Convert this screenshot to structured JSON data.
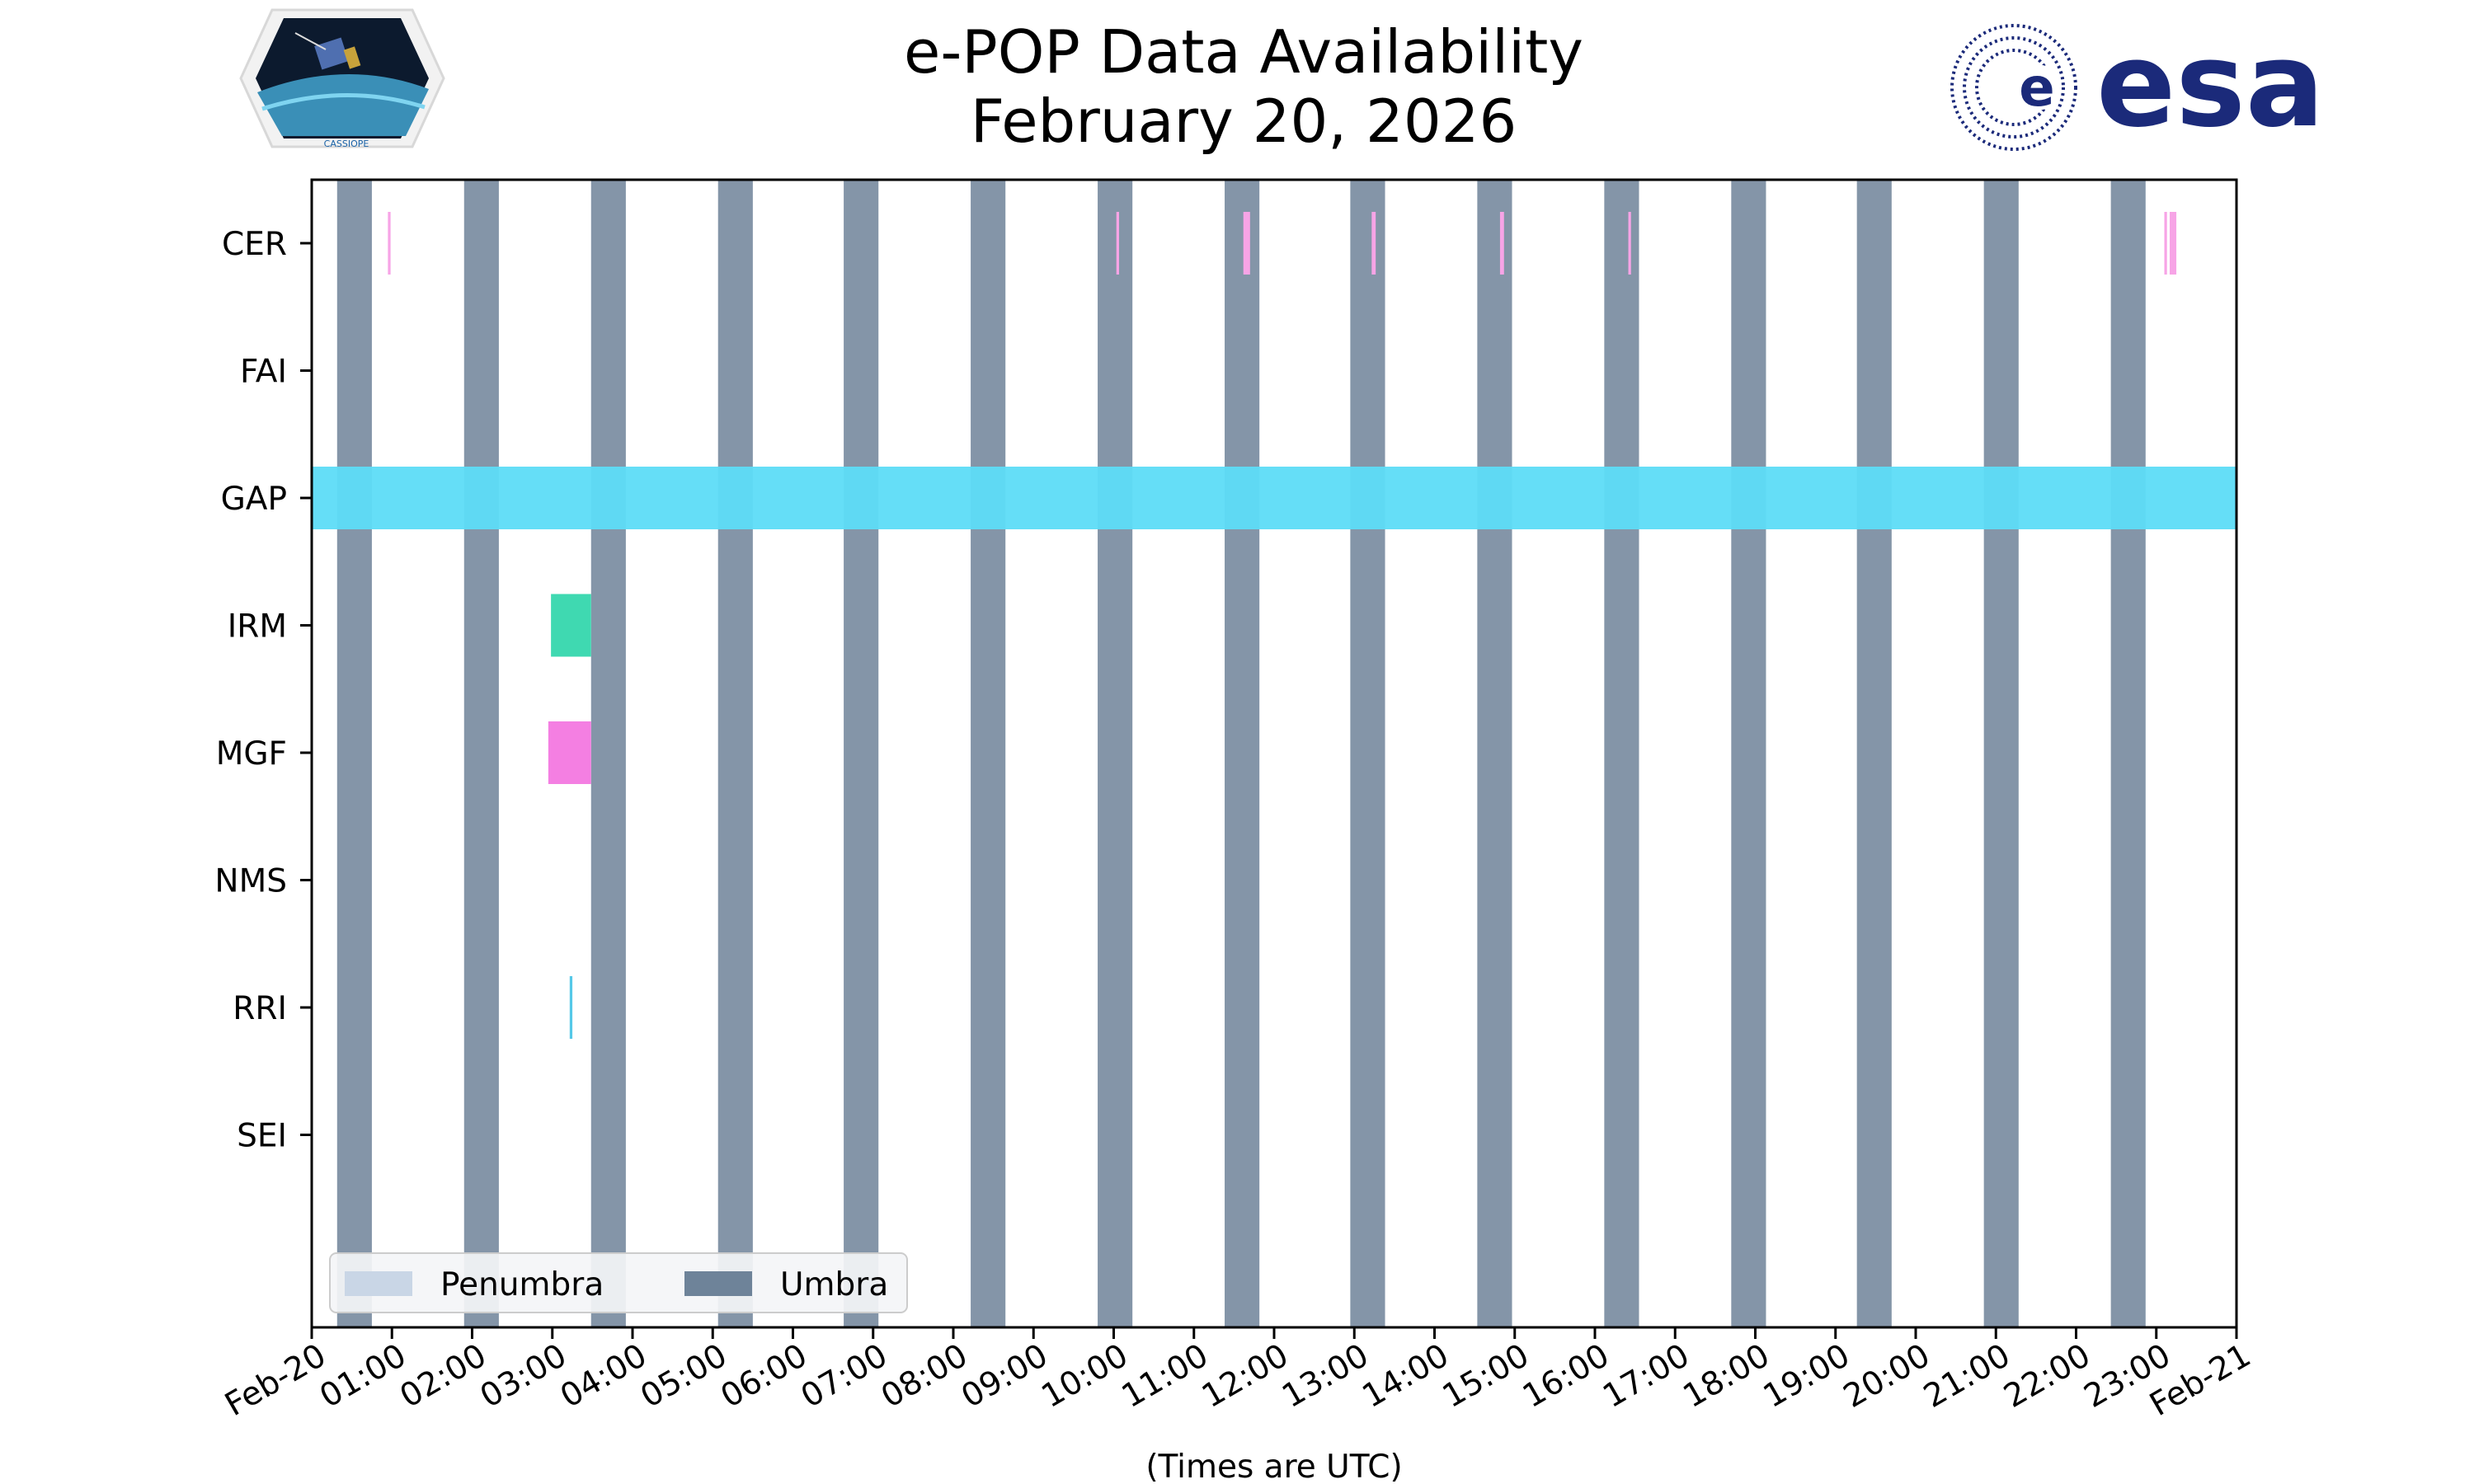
{
  "header": {
    "title": "e-POP Data Availability",
    "subtitle": "February 20, 2026",
    "left_logo": {
      "icon": "cassiope-logo",
      "text": "CASSIOPE"
    },
    "right_logo": {
      "icon": "esa-logo",
      "text": "esa",
      "color": "#1b2a7a"
    }
  },
  "chart_data": {
    "type": "timeline",
    "title": "e-POP Data Availability",
    "subtitle": "February 20, 2026",
    "xlabel": "(Times are UTC)",
    "xlim": [
      "2026-02-20T00:00",
      "2026-02-21T00:00"
    ],
    "xtick_labels": [
      "Feb-20",
      "01:00",
      "02:00",
      "03:00",
      "04:00",
      "05:00",
      "06:00",
      "07:00",
      "08:00",
      "09:00",
      "10:00",
      "11:00",
      "12:00",
      "13:00",
      "14:00",
      "15:00",
      "16:00",
      "17:00",
      "18:00",
      "19:00",
      "20:00",
      "21:00",
      "22:00",
      "23:00",
      "Feb-21"
    ],
    "categories": [
      "CER",
      "FAI",
      "GAP",
      "IRM",
      "MGF",
      "NMS",
      "RRI",
      "SEI"
    ],
    "umbra": [
      [
        "00:19",
        "00:45"
      ],
      [
        "01:54",
        "02:20"
      ],
      [
        "03:29",
        "03:55"
      ],
      [
        "05:04",
        "05:30"
      ],
      [
        "06:38",
        "07:04"
      ],
      [
        "08:13",
        "08:39"
      ],
      [
        "09:48",
        "10:14"
      ],
      [
        "11:23",
        "11:49"
      ],
      [
        "12:57",
        "13:23"
      ],
      [
        "14:32",
        "14:58"
      ],
      [
        "16:07",
        "16:33"
      ],
      [
        "17:42",
        "18:08"
      ],
      [
        "19:16",
        "19:42"
      ],
      [
        "20:51",
        "21:17"
      ],
      [
        "22:26",
        "22:52"
      ]
    ],
    "series": [
      {
        "name": "CER",
        "color": "#f7a4e6",
        "intervals": [
          [
            "00:57",
            "00:59"
          ],
          [
            "10:02",
            "10:04"
          ],
          [
            "11:37",
            "11:42"
          ],
          [
            "13:13",
            "13:16"
          ],
          [
            "14:49",
            "14:52"
          ],
          [
            "16:25",
            "16:27"
          ],
          [
            "23:06",
            "23:08"
          ],
          [
            "23:10",
            "23:15"
          ]
        ]
      },
      {
        "name": "FAI",
        "color": "#888888",
        "intervals": []
      },
      {
        "name": "GAP",
        "color": "#5ddcf7",
        "intervals": [
          [
            "00:00",
            "24:00"
          ]
        ]
      },
      {
        "name": "IRM",
        "color": "#3fd9b1",
        "intervals": [
          [
            "02:59",
            "03:29"
          ]
        ]
      },
      {
        "name": "MGF",
        "color": "#f47fe2",
        "intervals": [
          [
            "02:57",
            "03:29"
          ]
        ]
      },
      {
        "name": "NMS",
        "color": "#888888",
        "intervals": []
      },
      {
        "name": "RRI",
        "color": "#55c8e8",
        "intervals": [
          [
            "03:13",
            "03:15"
          ]
        ]
      },
      {
        "name": "SEI",
        "color": "#888888",
        "intervals": []
      }
    ],
    "legend": {
      "placement": "lower-left",
      "entries": [
        {
          "label": "Penumbra",
          "color": "#c9d6e6"
        },
        {
          "label": "Umbra",
          "color": "#6e8399"
        }
      ]
    },
    "umbra_color": "#6e8399",
    "grid": false
  }
}
